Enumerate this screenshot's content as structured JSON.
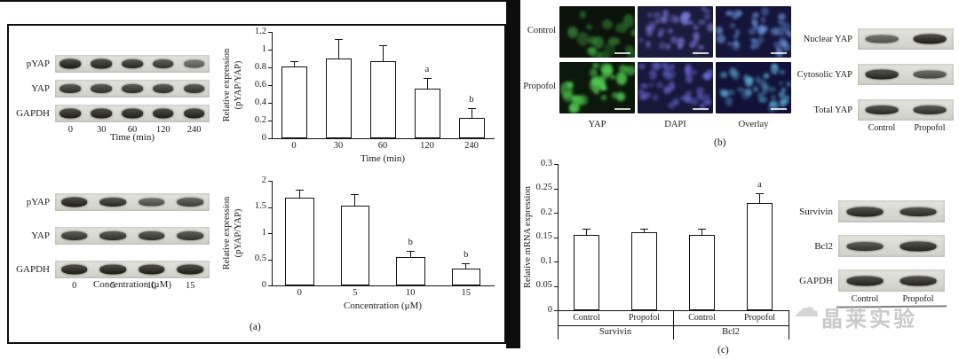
{
  "figure": {
    "panel_a_label": "(a)",
    "panel_b_label": "(b)",
    "panel_c_label": "(c)"
  },
  "panel_a": {
    "blot_time": {
      "rows": [
        {
          "label": "pYAP",
          "intensities": [
            0.95,
            0.9,
            0.87,
            0.8,
            0.5
          ]
        },
        {
          "label": "YAP",
          "intensities": [
            0.82,
            0.8,
            0.82,
            0.8,
            0.78
          ]
        },
        {
          "label": "GAPDH",
          "intensities": [
            0.95,
            0.95,
            0.95,
            0.95,
            0.95
          ]
        }
      ],
      "lanes": [
        "0",
        "30",
        "60",
        "120",
        "240"
      ],
      "xlabel": "Time (min)"
    },
    "blot_conc": {
      "rows": [
        {
          "label": "pYAP",
          "intensities": [
            0.95,
            0.85,
            0.6,
            0.7
          ]
        },
        {
          "label": "YAP",
          "intensities": [
            0.8,
            0.82,
            0.8,
            0.78
          ]
        },
        {
          "label": "GAPDH",
          "intensities": [
            0.95,
            0.95,
            0.95,
            0.95
          ]
        }
      ],
      "lanes": [
        "0",
        "5",
        "10",
        "15"
      ],
      "xlabel": "Concentration (μM)"
    }
  },
  "panel_b": {
    "row_labels": [
      "Control",
      "Propofol"
    ],
    "col_labels": [
      "YAP",
      "DAPI",
      "Overlay"
    ],
    "blot": {
      "rows": [
        {
          "label": "Nuclear YAP",
          "intensities": [
            0.55,
            0.95
          ]
        },
        {
          "label": "Cytosolic YAP",
          "intensities": [
            0.9,
            0.65
          ]
        },
        {
          "label": "Total YAP",
          "intensities": [
            0.85,
            0.82
          ]
        }
      ],
      "lanes": [
        "Control",
        "Propofol"
      ]
    }
  },
  "panel_c": {
    "blot": {
      "rows": [
        {
          "label": "Survivin",
          "intensities": [
            0.9,
            0.85
          ]
        },
        {
          "label": "Bcl2",
          "intensities": [
            0.78,
            0.9
          ]
        },
        {
          "label": "GAPDH",
          "intensities": [
            0.92,
            0.9
          ]
        }
      ],
      "lanes": [
        "Control",
        "Propofol"
      ]
    },
    "watermark": "晶莱实验"
  },
  "chart_data": [
    {
      "id": "time_course",
      "type": "bar",
      "categories": [
        "0",
        "30",
        "60",
        "120",
        "240"
      ],
      "values": [
        0.81,
        0.9,
        0.87,
        0.56,
        0.23
      ],
      "errors": [
        0.06,
        0.22,
        0.18,
        0.12,
        0.11
      ],
      "annotations": [
        "",
        "",
        "",
        "a",
        "b"
      ],
      "xlabel": "Time (min)",
      "ylabel": "Relative expression\n(pYAP/YAP)",
      "ylim": [
        0,
        1.2
      ],
      "yticks": [
        0,
        0.2,
        0.4,
        0.6,
        0.8,
        1,
        1.2
      ],
      "ytick_labels": [
        "0",
        "0.2",
        "0.4",
        "0.6",
        "0.8",
        "1",
        "1.2"
      ]
    },
    {
      "id": "concentration",
      "type": "bar",
      "categories": [
        "0",
        "5",
        "10",
        "15"
      ],
      "values": [
        1.67,
        1.52,
        0.55,
        0.33
      ],
      "errors": [
        0.16,
        0.23,
        0.11,
        0.09
      ],
      "annotations": [
        "",
        "",
        "b",
        "b"
      ],
      "xlabel": "Concentration (μM)",
      "ylabel": "Relative expression\n(pYAP/YAP)",
      "ylim": [
        0,
        2
      ],
      "yticks": [
        0,
        0.5,
        1,
        1.5,
        2
      ],
      "ytick_labels": [
        "0",
        "0.5",
        "1",
        "1.5",
        "2"
      ]
    },
    {
      "id": "mrna",
      "type": "bar",
      "categories": [
        "Control",
        "Propofol",
        "Control",
        "Propofol"
      ],
      "groups": [
        "Survivin",
        "Bcl2"
      ],
      "values": [
        0.155,
        0.16,
        0.155,
        0.22
      ],
      "errors": [
        0.012,
        0.008,
        0.012,
        0.02
      ],
      "annotations": [
        "",
        "",
        "",
        "a"
      ],
      "xlabel": "",
      "ylabel": "Relative mRNA expression",
      "ylim": [
        0,
        0.3
      ],
      "yticks": [
        0,
        0.05,
        0.1,
        0.15,
        0.2,
        0.25,
        0.3
      ],
      "ytick_labels": [
        "0",
        "0.05",
        "0.1",
        "0.15",
        "0.2",
        "0.25",
        "0.3"
      ]
    }
  ]
}
